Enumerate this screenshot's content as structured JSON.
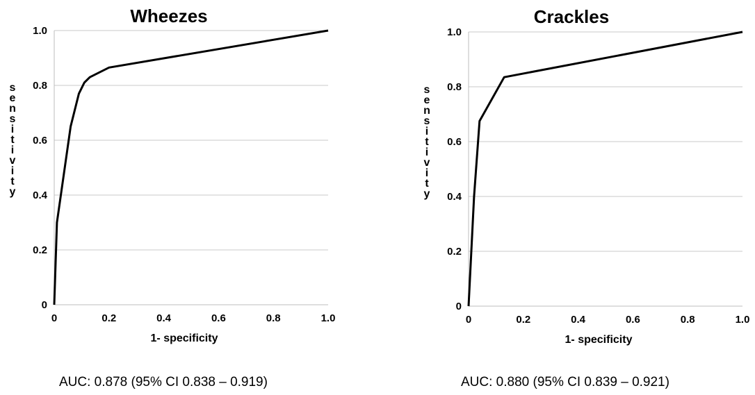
{
  "chart_data": [
    {
      "type": "line",
      "title": "Wheezes",
      "xlabel": "1- specificity",
      "ylabel": "sensitivity",
      "xlim": [
        0,
        1.0
      ],
      "ylim": [
        0,
        1.0
      ],
      "x_ticks": [
        "0",
        "0.2",
        "0.4",
        "0.6",
        "0.8",
        "1.0"
      ],
      "y_ticks": [
        "0",
        "0.2",
        "0.4",
        "0.6",
        "0.8",
        "1.0"
      ],
      "grid": "horizontal",
      "series": [
        {
          "x": [
            0,
            0.01,
            0.06,
            0.09,
            0.11,
            0.13,
            0.2,
            1.0
          ],
          "y": [
            0,
            0.3,
            0.65,
            0.77,
            0.81,
            0.83,
            0.865,
            1.0
          ]
        }
      ],
      "auc_text": "AUC: 0.878 (95% CI 0.838 – 0.919)"
    },
    {
      "type": "line",
      "title": "Crackles",
      "xlabel": "1- specificity",
      "ylabel": "sensitivity",
      "xlim": [
        0,
        1.0
      ],
      "ylim": [
        0,
        1.0
      ],
      "x_ticks": [
        "0",
        "0.2",
        "0.4",
        "0.6",
        "0.8",
        "1.0"
      ],
      "y_ticks": [
        "0",
        "0.2",
        "0.4",
        "0.6",
        "0.8",
        "1.0"
      ],
      "grid": "horizontal",
      "series": [
        {
          "x": [
            0,
            0.02,
            0.04,
            0.13,
            1.0
          ],
          "y": [
            0,
            0.4,
            0.675,
            0.835,
            1.0
          ]
        }
      ],
      "auc_text": "AUC: 0.880 (95% CI 0.839 – 0.921)"
    }
  ]
}
